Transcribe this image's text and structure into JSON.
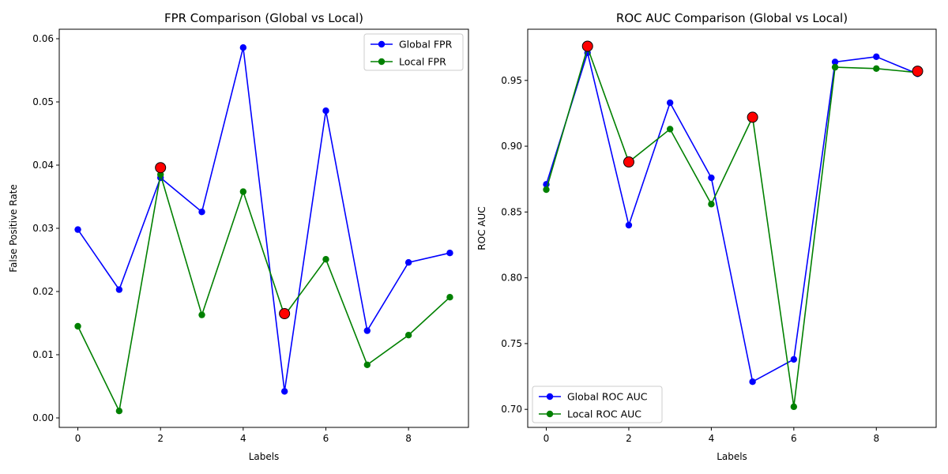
{
  "chart_data": [
    {
      "type": "line",
      "title": "FPR Comparison (Global vs Local)",
      "xlabel": "Labels",
      "ylabel": "False Positive Rate",
      "xlim": [
        -0.45,
        9.45
      ],
      "ylim": [
        -0.0015,
        0.0615
      ],
      "xticks": [
        0,
        2,
        4,
        6,
        8
      ],
      "yticks": [
        0.0,
        0.01,
        0.02,
        0.03,
        0.04,
        0.05,
        0.06
      ],
      "ytick_labels": [
        "0.00",
        "0.01",
        "0.02",
        "0.03",
        "0.04",
        "0.05",
        "0.06"
      ],
      "legend_position": "top-right",
      "x": [
        0,
        1,
        2,
        3,
        4,
        5,
        6,
        7,
        8,
        9
      ],
      "series": [
        {
          "name": "Global FPR",
          "color": "#0000ff",
          "values": [
            0.0298,
            0.0203,
            0.038,
            0.0326,
            0.0586,
            0.0042,
            0.0486,
            0.0138,
            0.0246,
            0.0261
          ]
        },
        {
          "name": "Local FPR",
          "color": "#008000",
          "values": [
            0.0145,
            0.0011,
            0.0385,
            0.0163,
            0.0358,
            0.0162,
            0.0251,
            0.0084,
            0.0131,
            0.0191
          ]
        }
      ],
      "highlights": {
        "color": "#ff0000",
        "points": [
          {
            "x": 2,
            "y": 0.0396
          },
          {
            "x": 5,
            "y": 0.0165
          }
        ]
      }
    },
    {
      "type": "line",
      "title": "ROC AUC Comparison (Global vs Local)",
      "xlabel": "Labels",
      "ylabel": "ROC AUC",
      "xlim": [
        -0.45,
        9.45
      ],
      "ylim": [
        0.6863,
        0.9889
      ],
      "xticks": [
        0,
        2,
        4,
        6,
        8
      ],
      "yticks": [
        0.7,
        0.75,
        0.8,
        0.85,
        0.9,
        0.95
      ],
      "ytick_labels": [
        "0.70",
        "0.75",
        "0.80",
        "0.85",
        "0.90",
        "0.95"
      ],
      "legend_position": "bottom-left",
      "x": [
        0,
        1,
        2,
        3,
        4,
        5,
        6,
        7,
        8,
        9
      ],
      "series": [
        {
          "name": "Global ROC AUC",
          "color": "#0000ff",
          "values": [
            0.871,
            0.971,
            0.84,
            0.933,
            0.876,
            0.721,
            0.738,
            0.964,
            0.968,
            0.955
          ]
        },
        {
          "name": "Local ROC AUC",
          "color": "#008000",
          "values": [
            0.867,
            0.975,
            0.888,
            0.913,
            0.856,
            0.922,
            0.702,
            0.96,
            0.959,
            0.956
          ]
        }
      ],
      "highlights": {
        "color": "#ff0000",
        "points": [
          {
            "x": 1,
            "y": 0.976
          },
          {
            "x": 2,
            "y": 0.888
          },
          {
            "x": 5,
            "y": 0.922
          },
          {
            "x": 9,
            "y": 0.957
          }
        ]
      }
    }
  ]
}
